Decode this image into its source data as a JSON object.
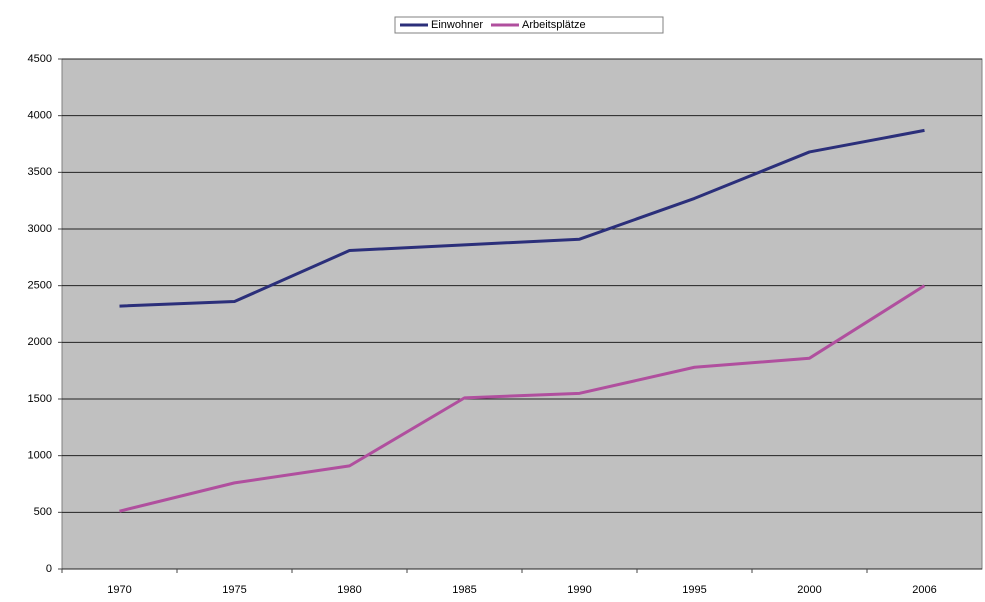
{
  "chart_data": {
    "type": "line",
    "categories": [
      "1970",
      "1975",
      "1980",
      "1985",
      "1990",
      "1995",
      "2000",
      "2006"
    ],
    "series": [
      {
        "name": "Einwohner",
        "color": "#2b2f7a",
        "values": [
          2320,
          2360,
          2810,
          2860,
          2910,
          3270,
          3680,
          3870
        ]
      },
      {
        "name": "Arbeitsplätze",
        "color": "#b04f9e",
        "values": [
          510,
          760,
          910,
          1510,
          1550,
          1780,
          1860,
          2500
        ]
      }
    ],
    "ylim": [
      0,
      4500
    ],
    "yticks": [
      0,
      500,
      1000,
      1500,
      2000,
      2500,
      3000,
      3500,
      4000,
      4500
    ],
    "grid": true,
    "legend": "top"
  }
}
